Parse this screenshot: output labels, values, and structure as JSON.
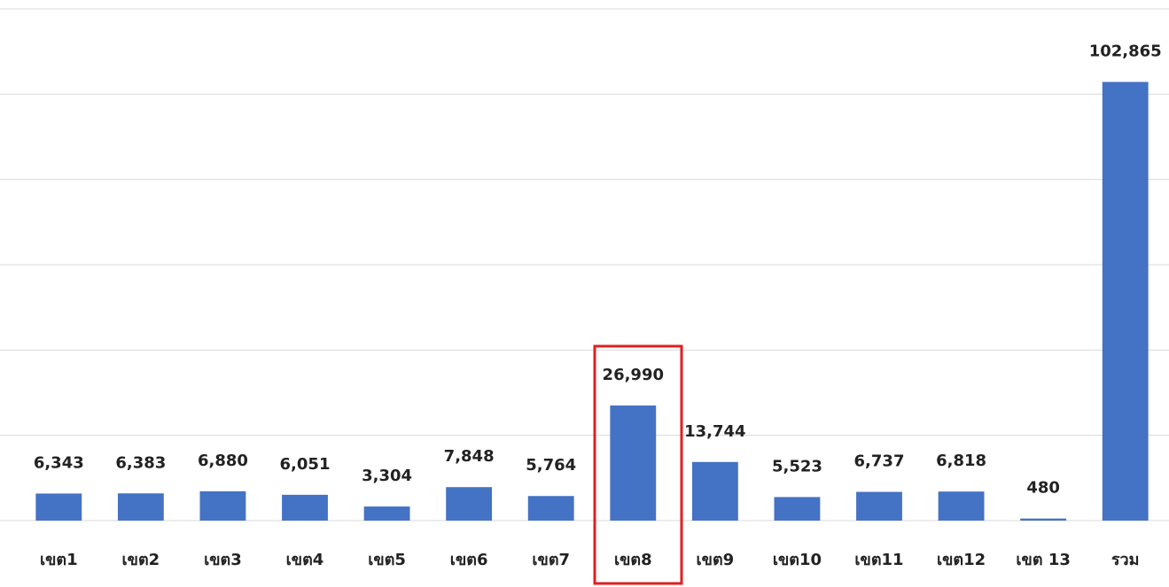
{
  "chart_data": {
    "type": "bar",
    "categories": [
      "เขต1",
      "เขต2",
      "เขต3",
      "เขต4",
      "เขต5",
      "เขต6",
      "เขต7",
      "เขต8",
      "เขต9",
      "เขต10",
      "เขต11",
      "เขต12",
      "เขต 13",
      "รวม"
    ],
    "values": [
      6343,
      6383,
      6880,
      6051,
      3304,
      7848,
      5764,
      26990,
      13744,
      5523,
      6737,
      6818,
      480,
      102865
    ],
    "value_labels": [
      "6,343",
      "6,383",
      "6,880",
      "6,051",
      "3,304",
      "7,848",
      "5,764",
      "26,990",
      "13,744",
      "5,523",
      "6,737",
      "6,818",
      "480",
      "102,865"
    ],
    "color": "#4472c4",
    "ylim": [
      0,
      120000
    ],
    "yticks": [
      0,
      20000,
      40000,
      60000,
      80000,
      100000,
      120000
    ],
    "grid": true
  }
}
